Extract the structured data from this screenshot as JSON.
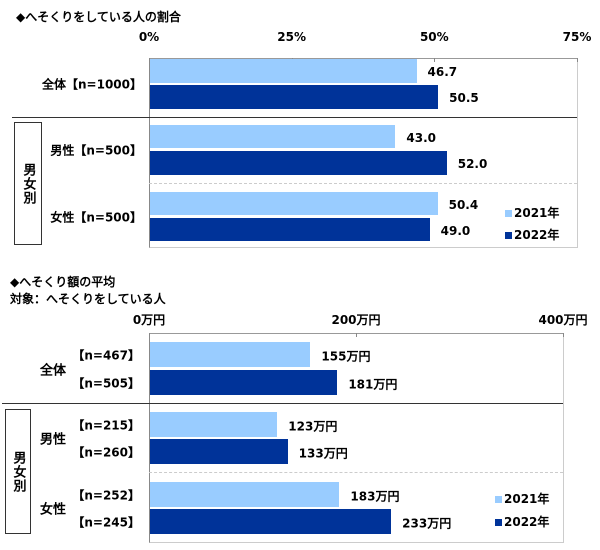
{
  "chart_data": [
    {
      "type": "bar",
      "orientation": "horizontal",
      "title": "◆へそくりをしている人の割合",
      "categories": [
        "全体【n=1000】",
        "男性【n=500】",
        "女性【n=500】"
      ],
      "group_label": "男女別",
      "series": [
        {
          "name": "2021年",
          "color": "#99CCFF",
          "values": [
            46.7,
            43.0,
            50.4
          ]
        },
        {
          "name": "2022年",
          "color": "#003399",
          "values": [
            50.5,
            52.0,
            49.0
          ]
        }
      ],
      "value_labels": [
        [
          "46.7",
          "43.0",
          "50.4"
        ],
        [
          "50.5",
          "52.0",
          "49.0"
        ]
      ],
      "xlim": [
        0,
        75
      ],
      "xticks": [
        "0%",
        "25%",
        "50%",
        "75%"
      ],
      "legend": "bottom-right"
    },
    {
      "type": "bar",
      "orientation": "horizontal",
      "title": "◆へそくり額の平均",
      "subtitle": "対象：へそくりをしている人",
      "categories": [
        "全体",
        "男性",
        "女性"
      ],
      "group_label": "男女別",
      "n_labels": [
        [
          "【n=467】",
          "【n=215】",
          "【n=252】"
        ],
        [
          "【n=505】",
          "【n=260】",
          "【n=245】"
        ]
      ],
      "series": [
        {
          "name": "2021年",
          "color": "#99CCFF",
          "values": [
            155,
            123,
            183
          ]
        },
        {
          "name": "2022年",
          "color": "#003399",
          "values": [
            181,
            133,
            233
          ]
        }
      ],
      "value_labels": [
        [
          "155万円",
          "123万円",
          "183万円"
        ],
        [
          "181万円",
          "133万円",
          "233万円"
        ]
      ],
      "xlim": [
        0,
        400
      ],
      "xticks": [
        "0万円",
        "200万円",
        "400万円"
      ],
      "legend": "bottom-right"
    }
  ]
}
